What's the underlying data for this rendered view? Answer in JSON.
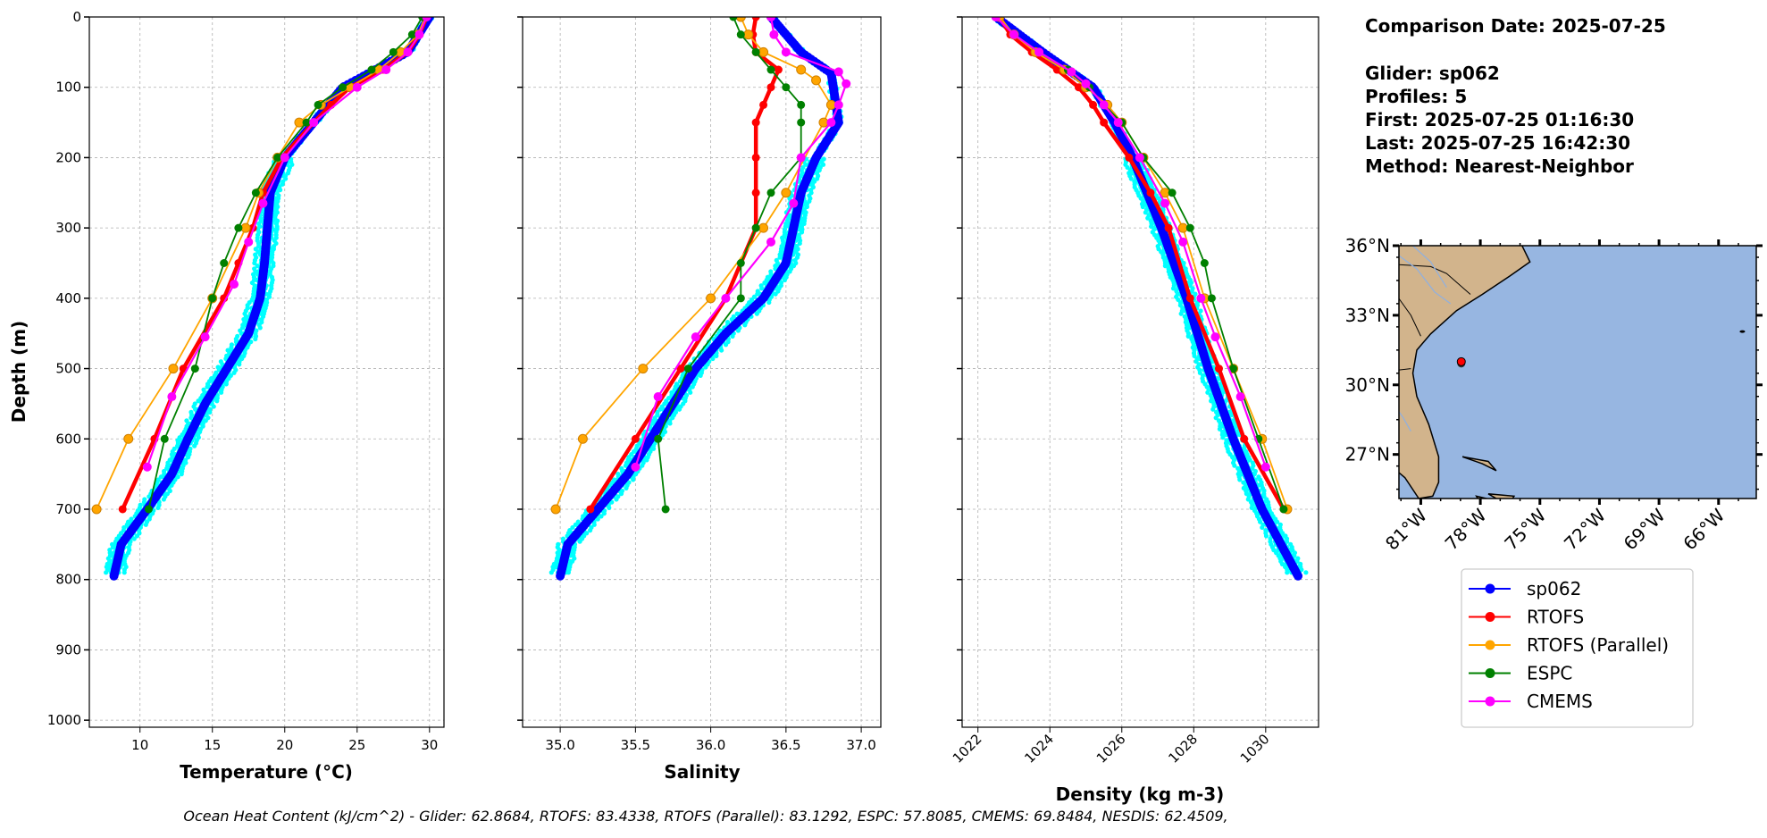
{
  "info": {
    "comparison_date": "Comparison Date: 2025-07-25",
    "glider": "Glider: sp062",
    "profiles": "Profiles: 5",
    "first": "First: 2025-07-25 01:16:30",
    "last": "Last: 2025-07-25 16:42:30",
    "method": "Method: Nearest-Neighbor"
  },
  "footer": "Ocean Heat Content (kJ/cm^2) - Glider: 62.8684,  RTOFS: 83.4338,  RTOFS (Parallel): 83.1292,  ESPC: 57.8085,  CMEMS: 69.8484,  NESDIS: 62.4509,",
  "legend": [
    {
      "name": "sp062",
      "color": "#0000ff"
    },
    {
      "name": "RTOFS",
      "color": "#ff0000"
    },
    {
      "name": "RTOFS (Parallel)",
      "color": "#ffa500"
    },
    {
      "name": "ESPC",
      "color": "#008000"
    },
    {
      "name": "CMEMS",
      "color": "#ff00ff"
    }
  ],
  "map": {
    "lat_ticks": [
      "36°N",
      "33°N",
      "30°N",
      "27°N"
    ],
    "lat_values": [
      36,
      33,
      30,
      27
    ],
    "lon_ticks": [
      "81°W",
      "78°W",
      "75°W",
      "72°W",
      "69°W",
      "66°W"
    ],
    "lon_values": [
      -81,
      -78,
      -75,
      -72,
      -69,
      -66
    ],
    "extent": {
      "lon": [
        -82.1,
        -64.1
      ],
      "lat": [
        25.1,
        36
      ]
    },
    "glider_position": {
      "lon": -78.96,
      "lat": 31.0
    },
    "land_color": "#d2b48c",
    "ocean_color": "#97b6e1"
  },
  "chart_data": [
    {
      "type": "line",
      "key": "temp",
      "xlabel": "Temperature (°C)",
      "ylabel": "Depth (m)",
      "xlim": [
        6.5,
        31
      ],
      "ylim": [
        1010,
        0
      ],
      "xticks": [
        10,
        15,
        20,
        25,
        30
      ],
      "xtick_labels": [
        "10",
        "15",
        "20",
        "25",
        "30"
      ],
      "yticks": [
        0,
        100,
        200,
        300,
        400,
        500,
        600,
        700,
        800,
        900,
        1000
      ],
      "ytick_labels": [
        "0",
        "100",
        "200",
        "300",
        "400",
        "500",
        "600",
        "700",
        "800",
        "900",
        "1000"
      ],
      "grid": true,
      "series": [
        {
          "name": "sp062",
          "depth": [
            0,
            50,
            100,
            150,
            200,
            250,
            300,
            350,
            400,
            450,
            500,
            550,
            600,
            650,
            700,
            750,
            795
          ],
          "values": [
            30,
            28.5,
            24,
            22,
            20,
            19,
            18.8,
            18.6,
            18.3,
            17.5,
            16,
            14.5,
            13.3,
            12.2,
            10.5,
            8.7,
            8.2
          ]
        },
        {
          "name": "RTOFS",
          "depth": [
            0,
            25,
            50,
            75,
            100,
            125,
            150,
            200,
            250,
            300,
            350,
            400,
            500,
            600,
            700
          ],
          "values": [
            29.8,
            29.3,
            28.5,
            26.8,
            24.5,
            23.2,
            22,
            19.8,
            18.5,
            17.8,
            16.8,
            15.8,
            13,
            11,
            8.8
          ]
        },
        {
          "name": "RTOFS (Parallel)",
          "depth": [
            0,
            25,
            50,
            75,
            100,
            125,
            150,
            200,
            250,
            300,
            400,
            500,
            600,
            700
          ],
          "values": [
            29.7,
            29.2,
            28,
            26.5,
            24.5,
            22.5,
            21,
            19.5,
            18.2,
            17.3,
            15,
            12.3,
            9.2,
            7
          ]
        },
        {
          "name": "ESPC",
          "depth": [
            0,
            25,
            50,
            75,
            100,
            125,
            150,
            200,
            250,
            300,
            350,
            400,
            500,
            600,
            700
          ],
          "values": [
            29.5,
            28.8,
            27.5,
            26,
            24,
            22.3,
            21.5,
            19.5,
            18,
            16.8,
            15.8,
            15,
            13.8,
            11.7,
            10.6
          ]
        },
        {
          "name": "CMEMS",
          "depth": [
            0,
            25,
            50,
            75,
            100,
            150,
            200,
            265,
            320,
            380,
            455,
            540,
            640
          ],
          "values": [
            29.8,
            29.3,
            28.5,
            27,
            25,
            22,
            20,
            18.5,
            17.5,
            16.5,
            14.5,
            12.2,
            10.5
          ]
        }
      ]
    },
    {
      "type": "line",
      "key": "salt",
      "xlabel": "Salinity",
      "xlim": [
        34.75,
        37.13
      ],
      "ylim": [
        1010,
        0
      ],
      "xticks": [
        35.0,
        35.5,
        36.0,
        36.5,
        37.0
      ],
      "xtick_labels": [
        "35.0",
        "35.5",
        "36.0",
        "36.5",
        "37.0"
      ],
      "yticks": [
        0,
        100,
        200,
        300,
        400,
        500,
        600,
        700,
        800,
        900,
        1000
      ],
      "grid": true,
      "series": [
        {
          "name": "sp062",
          "depth": [
            0,
            50,
            80,
            150,
            200,
            250,
            300,
            350,
            400,
            450,
            500,
            550,
            600,
            650,
            700,
            750,
            795
          ],
          "values": [
            36.4,
            36.6,
            36.8,
            36.85,
            36.7,
            36.6,
            36.55,
            36.5,
            36.35,
            36.1,
            35.9,
            35.75,
            35.6,
            35.45,
            35.25,
            35.05,
            35.0
          ]
        },
        {
          "name": "RTOFS",
          "depth": [
            0,
            25,
            50,
            75,
            100,
            125,
            150,
            200,
            250,
            300,
            400,
            500,
            600,
            700
          ],
          "values": [
            36.3,
            36.28,
            36.3,
            36.45,
            36.4,
            36.35,
            36.3,
            36.3,
            36.3,
            36.3,
            36.1,
            35.8,
            35.5,
            35.2
          ]
        },
        {
          "name": "RTOFS (Parallel)",
          "depth": [
            0,
            25,
            50,
            75,
            90,
            125,
            150,
            250,
            300,
            400,
            500,
            600,
            700
          ],
          "values": [
            36.2,
            36.25,
            36.35,
            36.6,
            36.7,
            36.8,
            36.75,
            36.5,
            36.35,
            36.0,
            35.55,
            35.15,
            34.97
          ]
        },
        {
          "name": "ESPC",
          "depth": [
            0,
            25,
            50,
            75,
            100,
            125,
            150,
            200,
            250,
            300,
            350,
            400,
            500,
            600,
            700
          ],
          "values": [
            36.15,
            36.2,
            36.3,
            36.4,
            36.5,
            36.6,
            36.6,
            36.6,
            36.4,
            36.3,
            36.2,
            36.2,
            35.85,
            35.65,
            35.7
          ]
        },
        {
          "name": "CMEMS",
          "depth": [
            0,
            25,
            50,
            78,
            95,
            125,
            150,
            200,
            265,
            320,
            400,
            455,
            540,
            640
          ],
          "values": [
            36.4,
            36.42,
            36.5,
            36.85,
            36.9,
            36.85,
            36.8,
            36.6,
            36.55,
            36.4,
            36.1,
            35.9,
            35.65,
            35.5
          ]
        }
      ]
    },
    {
      "type": "line",
      "key": "dens",
      "xlabel": "Density (kg m-3)",
      "xlim": [
        1021.56,
        1031.47
      ],
      "ylim": [
        1010,
        0
      ],
      "xticks": [
        1022,
        1024,
        1026,
        1028,
        1030
      ],
      "xtick_labels": [
        "1022",
        "1024",
        "1026",
        "1028",
        "1030"
      ],
      "yticks": [
        0,
        100,
        200,
        300,
        400,
        500,
        600,
        700,
        800,
        900,
        1000
      ],
      "grid": true,
      "series": [
        {
          "name": "sp062",
          "depth": [
            0,
            50,
            100,
            150,
            200,
            250,
            300,
            400,
            500,
            600,
            700,
            795
          ],
          "values": [
            1022.5,
            1023.8,
            1025.2,
            1025.8,
            1026.3,
            1026.7,
            1027.1,
            1027.8,
            1028.4,
            1029.1,
            1029.9,
            1030.9
          ]
        },
        {
          "name": "RTOFS",
          "depth": [
            0,
            25,
            50,
            75,
            100,
            125,
            150,
            200,
            250,
            300,
            400,
            500,
            600,
            700
          ],
          "values": [
            1022.6,
            1022.9,
            1023.5,
            1024.2,
            1024.8,
            1025.2,
            1025.5,
            1026.2,
            1026.8,
            1027.3,
            1027.9,
            1028.7,
            1029.4,
            1030.5
          ]
        },
        {
          "name": "RTOFS (Parallel)",
          "depth": [
            0,
            25,
            50,
            75,
            100,
            125,
            150,
            200,
            250,
            300,
            400,
            500,
            600,
            700
          ],
          "values": [
            1022.6,
            1023.0,
            1023.6,
            1024.4,
            1025.0,
            1025.6,
            1026.0,
            1026.6,
            1027.2,
            1027.7,
            1028.3,
            1029.1,
            1029.9,
            1030.6
          ]
        },
        {
          "name": "ESPC",
          "depth": [
            0,
            25,
            50,
            75,
            100,
            125,
            150,
            200,
            250,
            300,
            350,
            400,
            500,
            600,
            700
          ],
          "values": [
            1022.5,
            1023.0,
            1023.7,
            1024.5,
            1025.1,
            1025.5,
            1026.0,
            1026.6,
            1027.4,
            1027.9,
            1028.3,
            1028.5,
            1029.1,
            1029.8,
            1030.5
          ]
        },
        {
          "name": "CMEMS",
          "depth": [
            0,
            25,
            50,
            78,
            95,
            125,
            150,
            200,
            265,
            320,
            400,
            455,
            540,
            640
          ],
          "values": [
            1022.5,
            1023.0,
            1023.7,
            1024.6,
            1025.0,
            1025.5,
            1025.9,
            1026.5,
            1027.2,
            1027.7,
            1028.2,
            1028.6,
            1029.3,
            1030.0
          ]
        }
      ]
    }
  ]
}
